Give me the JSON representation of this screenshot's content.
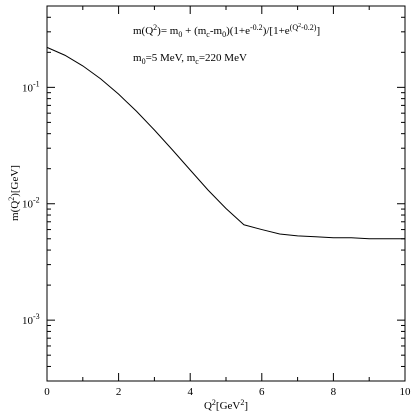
{
  "chart_data": {
    "type": "line",
    "title": "",
    "xlabel": "Q²[GeV²]",
    "ylabel": "m(Q²)[GeV]",
    "xlim": [
      0,
      10
    ],
    "ylim": [
      0.0003,
      0.5
    ],
    "yscale": "log",
    "grid": false,
    "x_ticks": [
      0,
      2,
      4,
      6,
      8,
      10
    ],
    "y_ticks": [
      0.001,
      0.01,
      0.1
    ],
    "y_tick_exponents": [
      "-3",
      "-2",
      "-1"
    ],
    "annotations": [
      "m(Q²)= m₀ + (mc-m₀)(1+e^-0.2)/[1+e^(Q²-0.2)]",
      "m₀=5 MeV, mc=220 MeV"
    ],
    "parameters": {
      "m0": 0.005,
      "mc": 0.22
    },
    "series": [
      {
        "x": [
          0,
          0.5,
          1,
          1.5,
          2,
          2.5,
          3,
          3.5,
          4,
          4.5,
          5,
          5.5,
          6,
          6.5,
          7,
          7.5,
          8,
          8.5,
          9,
          9.5,
          10
        ],
        "values": [
          0.2206,
          0.1888,
          0.1529,
          0.1182,
          0.0874,
          0.0623,
          0.043,
          0.0291,
          0.0195,
          0.0131,
          0.0091,
          0.0066,
          0.006,
          0.0055,
          0.0053,
          0.0052,
          0.0051,
          0.0051,
          0.005,
          0.005,
          0.005
        ]
      }
    ]
  }
}
